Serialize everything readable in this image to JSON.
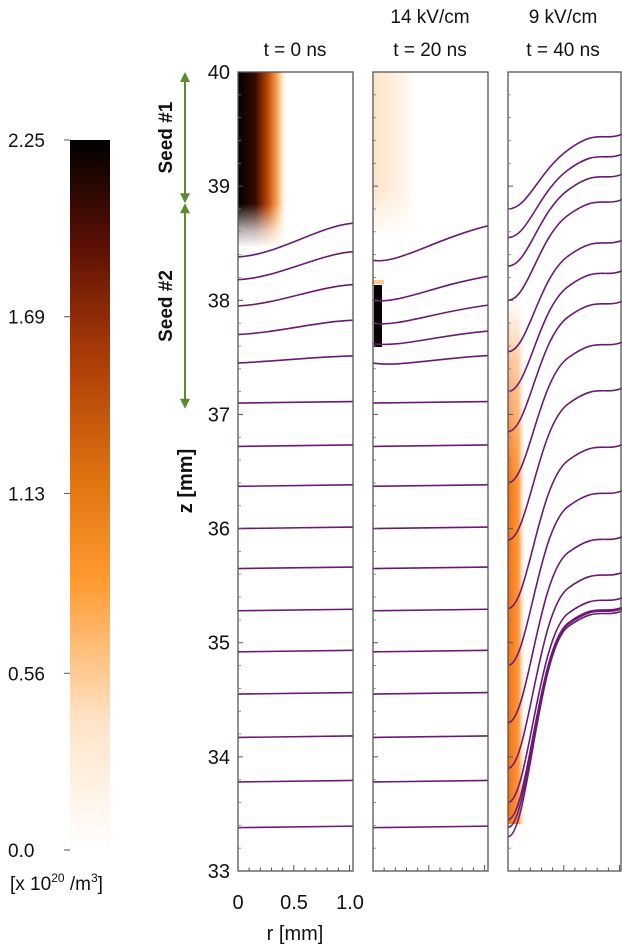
{
  "chart_data": [
    {
      "type": "heatmap",
      "title": "t = 0 ns",
      "field_label": "",
      "xlabel": "r [mm]",
      "ylabel": "z [mm]",
      "xlim": [
        0,
        1.0
      ],
      "ylim": [
        33,
        40
      ],
      "x_ticks": [
        "0",
        "0.5",
        "1.0"
      ],
      "y_ticks": [
        "33",
        "34",
        "35",
        "36",
        "37",
        "38",
        "39",
        "40"
      ],
      "density_region": {
        "r_max": 0.35,
        "z_min": 38.5,
        "z_max": 40,
        "peak": 2.25
      },
      "annotations": [
        {
          "label": "Seed #1",
          "z_range": [
            38.85,
            40
          ]
        },
        {
          "label": "Seed #2",
          "z_range": [
            37.05,
            38.85
          ]
        }
      ],
      "contour_z_at_axis": [
        33.38,
        33.78,
        34.17,
        34.55,
        34.92,
        35.28,
        35.65,
        36.0,
        36.37,
        36.72,
        37.1,
        37.45,
        37.7,
        37.95,
        38.18,
        38.38
      ]
    },
    {
      "type": "heatmap",
      "title": "t = 20 ns",
      "field_label": "14 kV/cm",
      "xlim": [
        0,
        1.0
      ],
      "ylim": [
        33,
        40
      ],
      "density_region": {
        "r_max": 0.3,
        "z_min": 37.55,
        "z_max": 38.15,
        "peak": 2.25
      },
      "contour_z_at_axis": [
        33.38,
        33.78,
        34.17,
        34.55,
        34.92,
        35.28,
        35.65,
        36.0,
        36.37,
        36.72,
        37.1,
        37.45,
        37.62,
        37.8,
        38.0,
        38.35
      ]
    },
    {
      "type": "heatmap",
      "title": "t = 40 ns",
      "field_label": "9 kV/cm",
      "xlim": [
        0,
        1.0
      ],
      "ylim": [
        33,
        40
      ],
      "density_region": {
        "r_max": 0.12,
        "z_min": 33.4,
        "z_max": 37.2,
        "peak": 1.13
      },
      "contour_z_at_axis": [
        33.3,
        33.38,
        33.45,
        33.6,
        33.9,
        34.3,
        34.8,
        35.3,
        35.9,
        36.4,
        36.85,
        37.2,
        37.55,
        38.0,
        38.3,
        38.55,
        38.8
      ]
    }
  ],
  "colorbar": {
    "ticks": [
      "2.25",
      "1.69",
      "1.13",
      "0.56",
      "0.0"
    ],
    "tick_values": [
      2.25,
      1.69,
      1.13,
      0.56,
      0.0
    ],
    "range": [
      0.0,
      2.25
    ],
    "unit_prefix": "[x 10",
    "unit_exp": "20",
    "unit_suffix": " /m",
    "unit_exp2": "3",
    "unit_close": "]",
    "colors": [
      "#ffffff",
      "#ffd2a8",
      "#ff8a10",
      "#c05008",
      "#6a1404",
      "#000000"
    ]
  },
  "colors": {
    "contour": "#6a1a74",
    "arrow": "#5b8a2f",
    "frame": "#555555"
  }
}
